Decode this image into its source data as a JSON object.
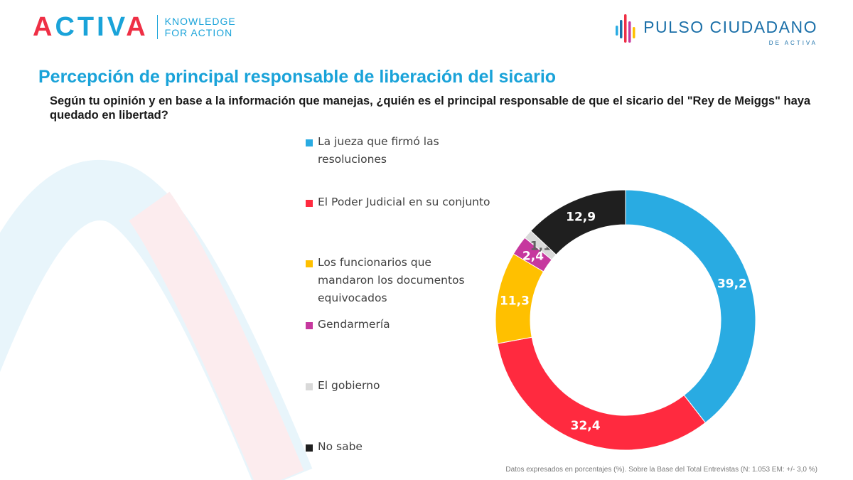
{
  "header": {
    "logo_left": {
      "wordmark": "ACTIVA",
      "tagline_line1": "KNOWLEDGE",
      "tagline_line2": "FOR ACTION"
    },
    "logo_right": {
      "name": "PULSO CIUDADANO",
      "sub": "DE ACTIVA"
    }
  },
  "title": {
    "prefix": "Percepción de ",
    "bold": "principal responsable de liberación del sicario"
  },
  "question": "Según tu opinión y en base a la información que manejas, ¿quién es el principal responsable de que el sicario del \"Rey de Meiggs\" haya quedado en libertad?",
  "chart_data": {
    "type": "pie",
    "donut": true,
    "unit": "%",
    "series": [
      {
        "name": "La jueza que firmó las resoluciones",
        "label": "39,2",
        "value": 39.2,
        "color": "#29abe2"
      },
      {
        "name": "El Poder Judicial en su conjunto",
        "label": "32,4",
        "value": 32.4,
        "color": "#ff2a3f"
      },
      {
        "name": "Los funcionarios que mandaron los documentos equivocados",
        "label": "11,3",
        "value": 11.3,
        "color": "#ffc000"
      },
      {
        "name": "Gendarmería",
        "label": "2,4",
        "value": 2.4,
        "color": "#c6389e"
      },
      {
        "name": "El gobierno",
        "label": "1,1",
        "value": 1.1,
        "color": "#d9d9d9"
      },
      {
        "name": "No sabe",
        "label": "12,9",
        "value": 12.9,
        "color": "#1f1f1f"
      }
    ],
    "legend_position": "left"
  },
  "footnote": "Datos expresados en porcentajes (%). Sobre la Base del Total Entrevistas (N: 1.053  EM: +/- 3,0 %)"
}
